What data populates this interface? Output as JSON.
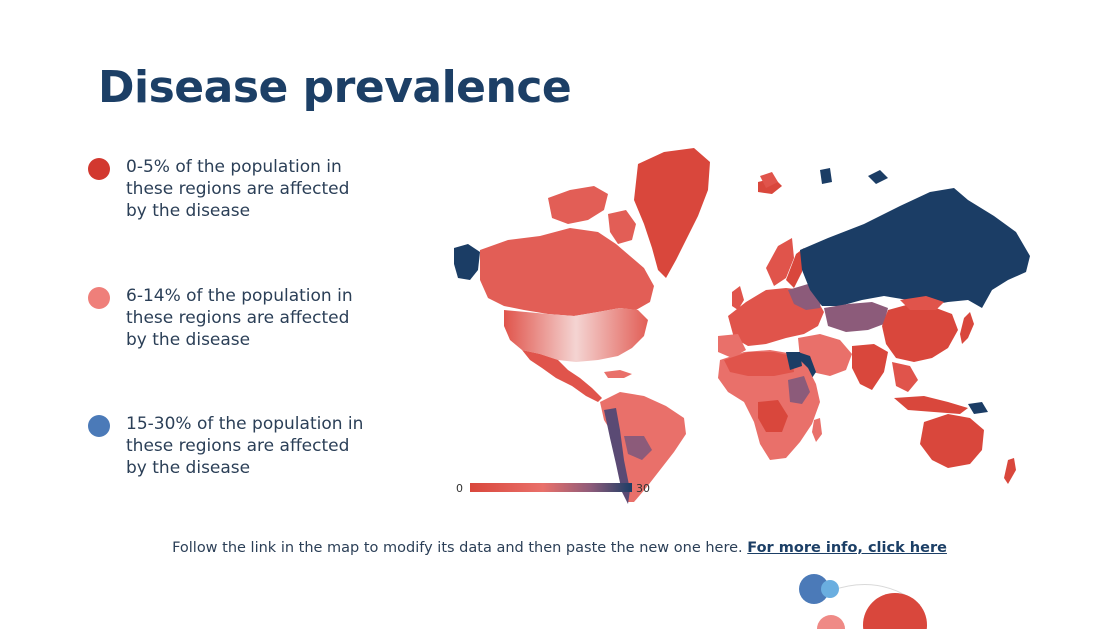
{
  "title": "Disease prevalence",
  "legend": [
    {
      "text": "0-5% of the population in these regions are affected by the disease",
      "color": "#d2382f"
    },
    {
      "text": "6-14% of the population in these regions are affected by the disease",
      "color": "#ef7f7a"
    },
    {
      "text": "15-30% of the population in these regions are affected by the disease",
      "color": "#4b7ab8"
    }
  ],
  "map": {
    "scale_min": "0",
    "scale_max": "30",
    "colors": {
      "low": "#d9473c",
      "mid": "#e9706a",
      "high": "#1b3d65",
      "purple": "#8c5b7a"
    }
  },
  "footer": {
    "text": "Follow the link in the map to modify its data and then paste the new one here.",
    "link": "For more info, click here"
  }
}
